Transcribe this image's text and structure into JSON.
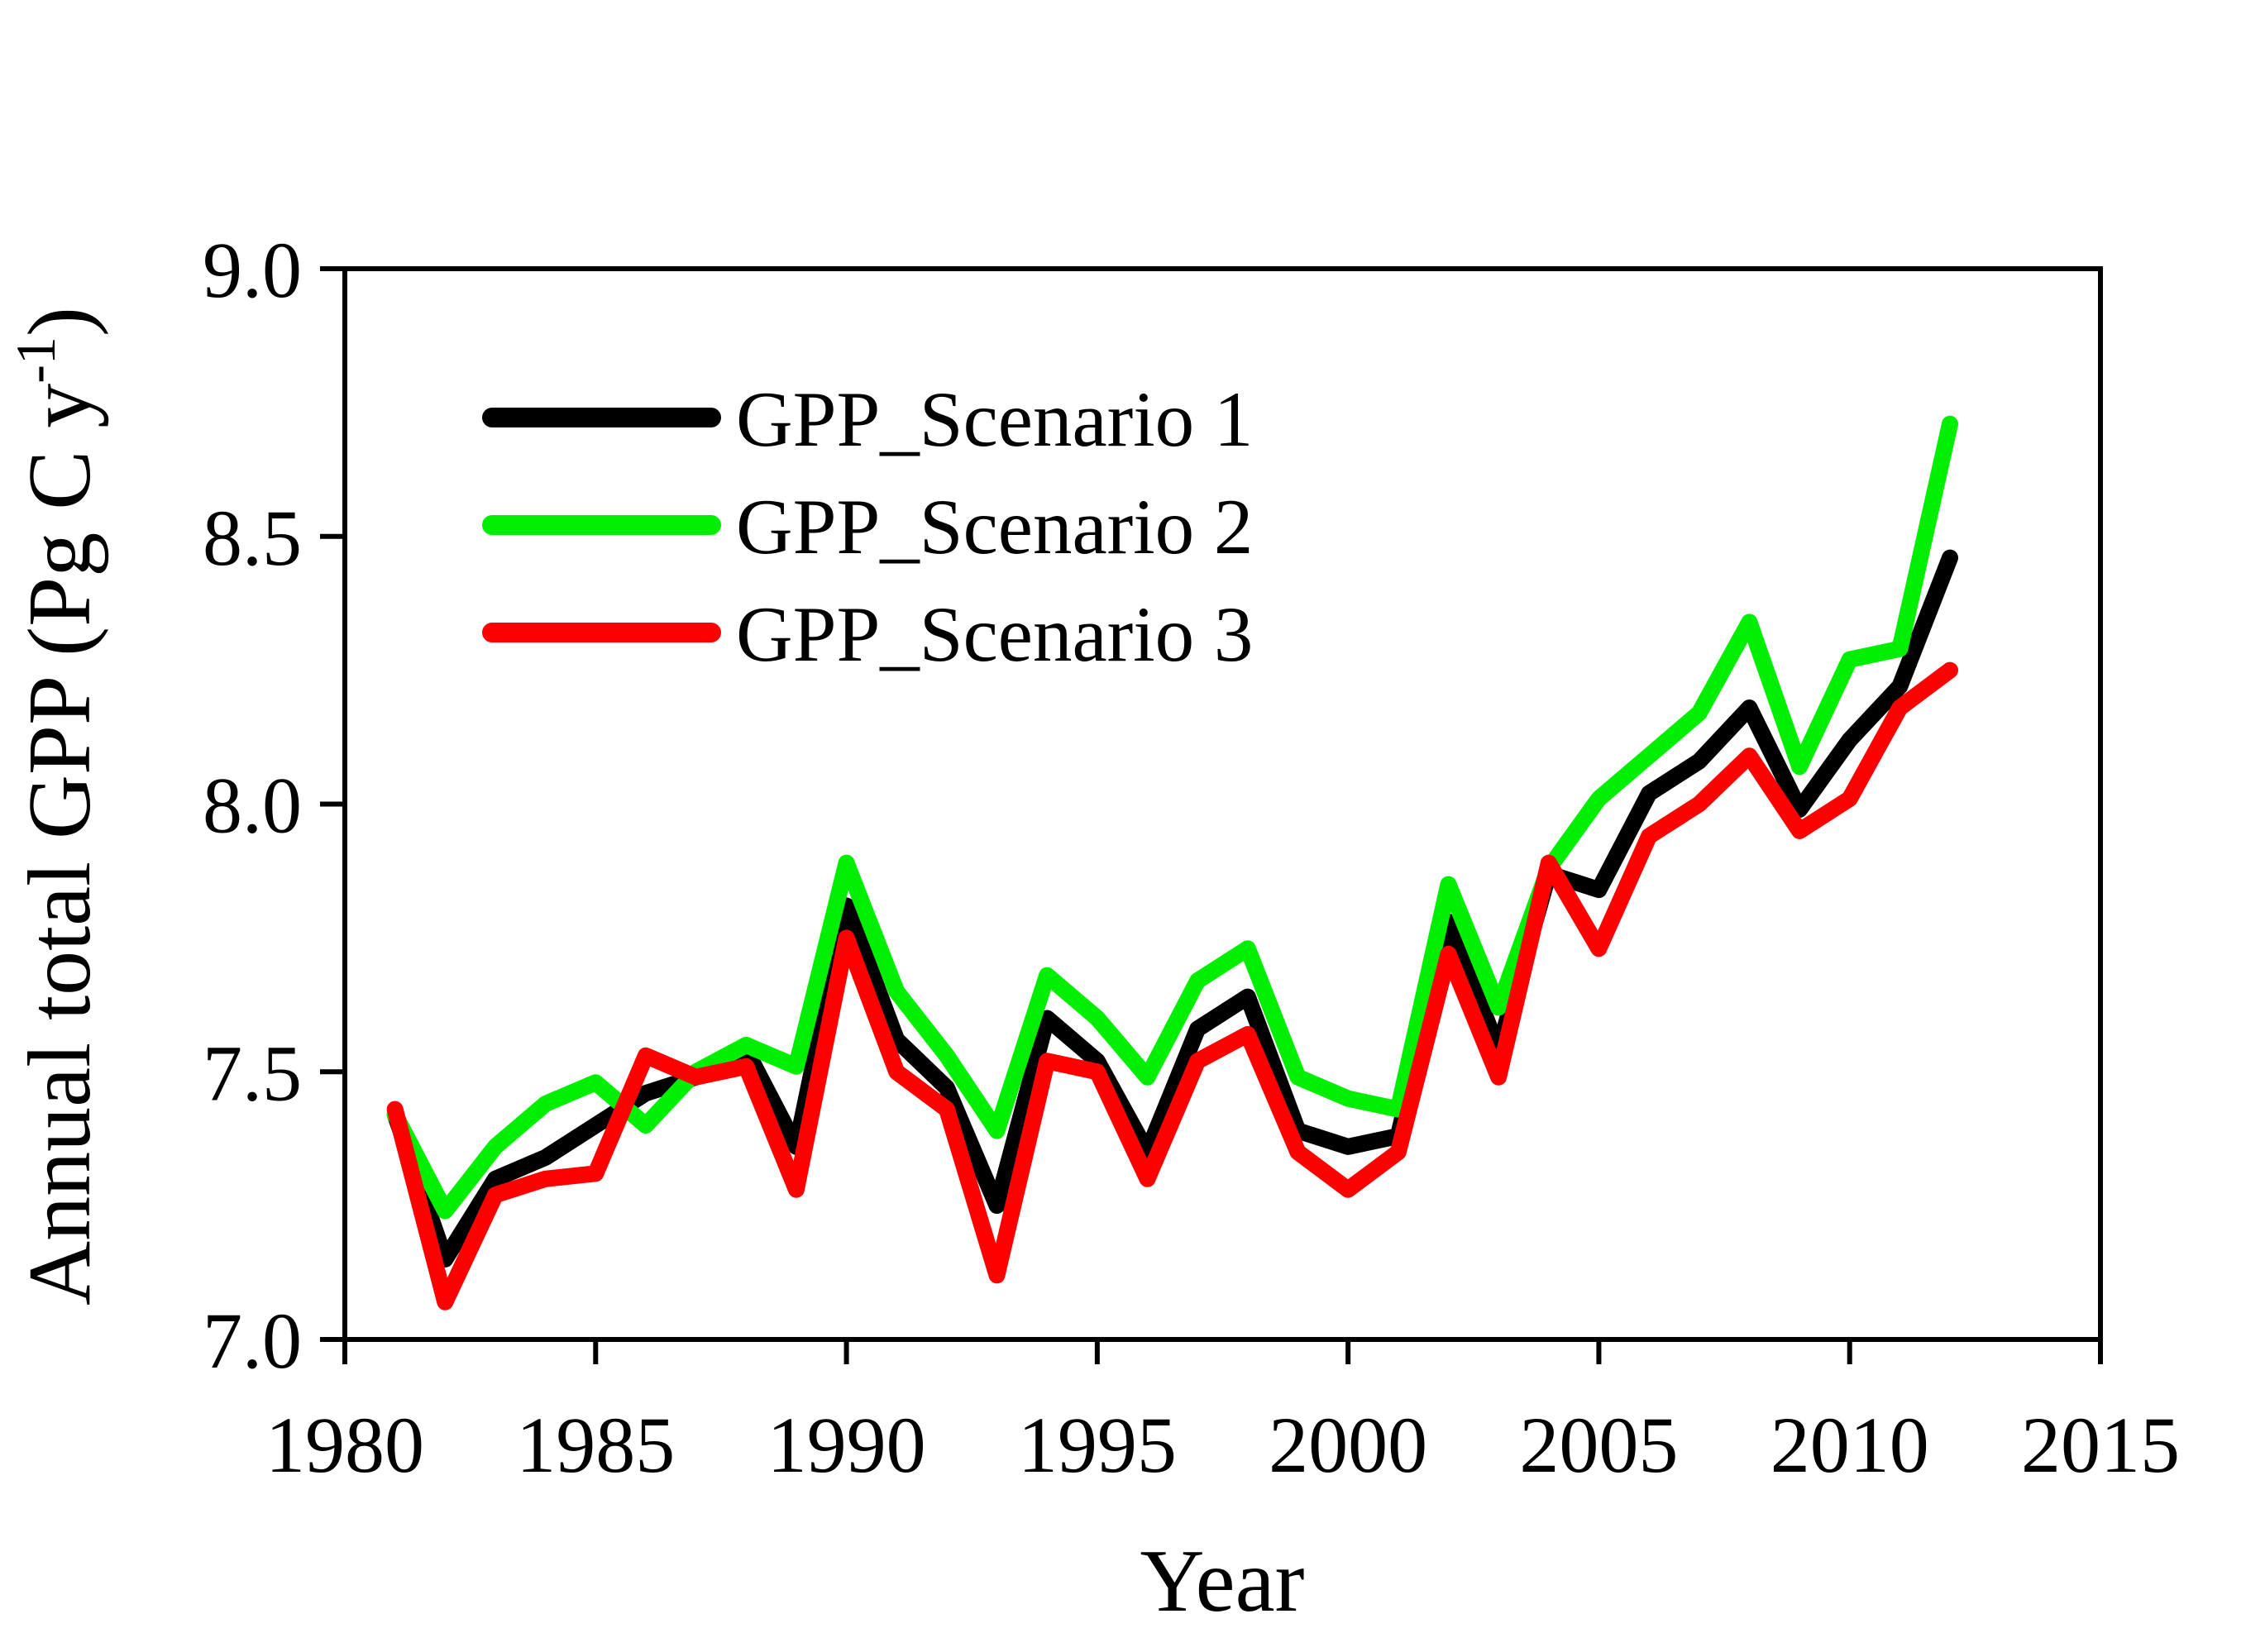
{
  "chart_data": {
    "type": "line",
    "title": "",
    "xlabel": "Year",
    "ylabel_full": "Annual total GPP (Pg C y-1)",
    "ylabel_pre": "Annual total GPP (Pg C y",
    "ylabel_sup": "-1",
    "ylabel_post": ")",
    "xlim": [
      1980,
      2015
    ],
    "ylim": [
      7.0,
      9.0
    ],
    "xticks": [
      "1980",
      "1985",
      "1990",
      "1995",
      "2000",
      "2005",
      "2010",
      "2015"
    ],
    "yticks": [
      "7.0",
      "7.5",
      "8.0",
      "8.5",
      "9.0"
    ],
    "ytick_values": [
      7.0,
      7.5,
      8.0,
      8.5,
      9.0
    ],
    "xtick_values": [
      1980,
      1985,
      1990,
      1995,
      2000,
      2005,
      2010,
      2015
    ],
    "grid": false,
    "legend_position": "inside-upper-left",
    "x": [
      1981,
      1982,
      1983,
      1984,
      1985,
      1986,
      1987,
      1988,
      1989,
      1990,
      1991,
      1992,
      1993,
      1994,
      1995,
      1996,
      1997,
      1998,
      1999,
      2000,
      2001,
      2002,
      2003,
      2004,
      2005,
      2006,
      2007,
      2008,
      2009,
      2010,
      2011,
      2012
    ],
    "series": [
      {
        "name": "GPP_Scenario 1",
        "color": "#000000",
        "values": [
          7.42,
          7.15,
          7.3,
          7.34,
          7.4,
          7.46,
          7.49,
          7.54,
          7.36,
          7.81,
          7.56,
          7.47,
          7.25,
          7.6,
          7.52,
          7.35,
          7.58,
          7.64,
          7.39,
          7.36,
          7.38,
          7.78,
          7.54,
          7.87,
          7.84,
          8.02,
          8.08,
          8.18,
          7.99,
          8.12,
          8.22,
          8.46
        ]
      },
      {
        "name": "GPP_Scenario 2",
        "color": "#00ee00",
        "values": [
          7.42,
          7.24,
          7.36,
          7.44,
          7.48,
          7.4,
          7.5,
          7.55,
          7.51,
          7.89,
          7.65,
          7.53,
          7.39,
          7.68,
          7.6,
          7.49,
          7.67,
          7.73,
          7.49,
          7.45,
          7.43,
          7.85,
          7.62,
          7.88,
          8.01,
          8.09,
          8.17,
          8.34,
          8.07,
          8.27,
          8.29,
          8.71
        ]
      },
      {
        "name": "GPP_Scenario 3",
        "color": "#ff0000",
        "values": [
          7.43,
          7.07,
          7.27,
          7.3,
          7.31,
          7.53,
          7.49,
          7.51,
          7.28,
          7.75,
          7.5,
          7.43,
          7.12,
          7.52,
          7.5,
          7.3,
          7.52,
          7.57,
          7.35,
          7.28,
          7.35,
          7.72,
          7.49,
          7.89,
          7.73,
          7.94,
          8.0,
          8.09,
          7.95,
          8.01,
          8.18,
          8.25
        ]
      }
    ]
  }
}
